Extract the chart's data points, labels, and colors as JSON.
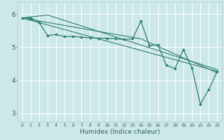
{
  "xlabel": "Humidex (Indice chaleur)",
  "bg_color": "#cce8e8",
  "grid_color": "#ffffff",
  "line_color": "#2e7d6e",
  "xlim": [
    -0.5,
    23.5
  ],
  "ylim": [
    2.75,
    6.35
  ],
  "yticks": [
    3,
    4,
    5,
    6
  ],
  "series": [
    [
      0,
      5.88
    ],
    [
      1,
      5.88
    ],
    [
      2,
      5.75
    ],
    [
      3,
      5.35
    ],
    [
      4,
      5.38
    ],
    [
      5,
      5.32
    ],
    [
      6,
      5.32
    ],
    [
      7,
      5.3
    ],
    [
      8,
      5.28
    ],
    [
      9,
      5.27
    ],
    [
      10,
      5.27
    ],
    [
      11,
      5.25
    ],
    [
      12,
      5.23
    ],
    [
      13,
      5.25
    ],
    [
      14,
      5.78
    ],
    [
      15,
      5.05
    ],
    [
      16,
      5.07
    ],
    [
      17,
      4.45
    ],
    [
      18,
      4.35
    ],
    [
      19,
      4.92
    ],
    [
      20,
      4.38
    ],
    [
      21,
      3.28
    ],
    [
      22,
      3.72
    ],
    [
      23,
      4.27
    ]
  ],
  "trend1_x": [
    0,
    23
  ],
  "trend1_y": [
    5.88,
    4.27
  ],
  "trend2_x": [
    0,
    3,
    23
  ],
  "trend2_y": [
    5.88,
    5.97,
    4.32
  ],
  "trend3_x": [
    0,
    14,
    23
  ],
  "trend3_y": [
    5.88,
    5.25,
    4.22
  ]
}
